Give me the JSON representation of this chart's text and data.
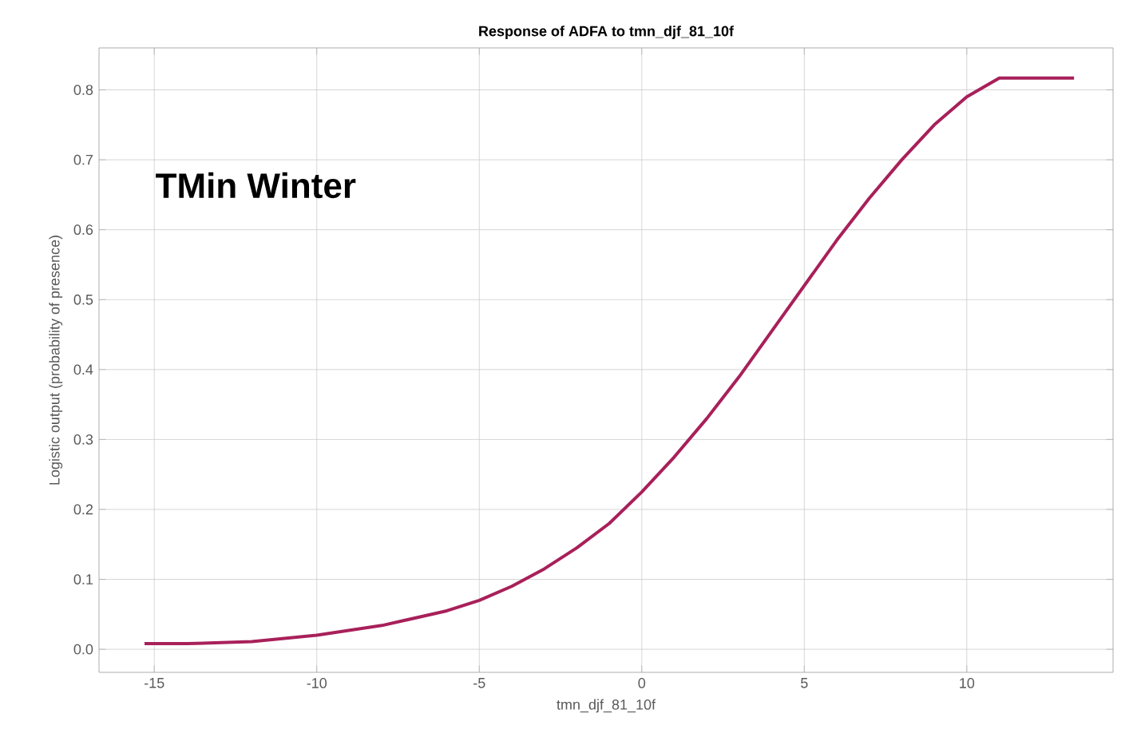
{
  "chart_data": {
    "type": "line",
    "title": "Response of ADFA to tmn_djf_81_10f",
    "xlabel": "tmn_djf_81_10f",
    "ylabel": "Logistic output (probability of presence)",
    "annotations": [
      "TMin Winter"
    ],
    "x": [
      -15.3,
      -14,
      -12,
      -10,
      -8,
      -6,
      -5,
      -4,
      -3,
      -2,
      -1,
      0,
      1,
      2,
      3,
      4,
      5,
      6,
      7,
      8,
      9,
      10,
      11,
      13.3
    ],
    "series": [
      {
        "color": "#a8205a",
        "values": [
          0.008,
          0.008,
          0.011,
          0.02,
          0.034,
          0.055,
          0.07,
          0.09,
          0.115,
          0.145,
          0.18,
          0.225,
          0.275,
          0.33,
          0.39,
          0.455,
          0.52,
          0.585,
          0.645,
          0.7,
          0.75,
          0.79,
          0.817,
          0.817
        ]
      }
    ],
    "xlim": [
      -16.7,
      14.5
    ],
    "ylim": [
      -0.033,
      0.86
    ],
    "xticks": [
      -15,
      -10,
      -5,
      0,
      5,
      10
    ],
    "yticks": [
      {
        "value": 0,
        "label": "0.0"
      },
      0.1,
      0.2,
      0.3,
      0.4,
      0.5,
      0.6,
      0.7,
      0.8
    ],
    "grid": true,
    "marker": "none",
    "line_style": "solid"
  }
}
